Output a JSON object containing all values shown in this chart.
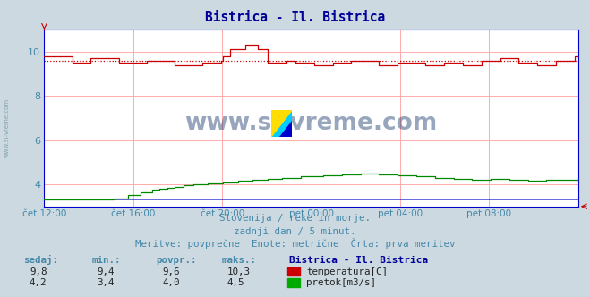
{
  "title": "Bistrica - Il. Bistrica",
  "title_color": "#000099",
  "bg_color": "#ccd9e0",
  "plot_bg_color": "#ffffff",
  "grid_color": "#ffaaaa",
  "axis_color": "#0000cc",
  "text_color": "#4488aa",
  "ylim": [
    3.0,
    11.0
  ],
  "yticks": [
    4,
    6,
    8,
    10
  ],
  "x_labels": [
    "čet 12:00",
    "čet 16:00",
    "čet 20:00",
    "pet 00:00",
    "pet 04:00",
    "pet 08:00"
  ],
  "x_ticks_norm": [
    0.0,
    0.1667,
    0.3333,
    0.5,
    0.6667,
    0.8333
  ],
  "temp_avg": 9.6,
  "subtitle1": "Slovenija / reke in morje.",
  "subtitle2": "zadnji dan / 5 minut.",
  "subtitle3": "Meritve: povprečne  Enote: metrične  Črta: prva meritev",
  "legend_title": "Bistrica - Il. Bistrica",
  "legend_items": [
    {
      "label": "temperatura[C]",
      "color": "#cc0000"
    },
    {
      "label": "pretok[m3/s]",
      "color": "#00aa00"
    }
  ],
  "table_headers": [
    "sedaj:",
    "min.:",
    "povpr.:",
    "maks.:"
  ],
  "table_rows": [
    [
      "9,8",
      "9,4",
      "9,6",
      "10,3"
    ],
    [
      "4,2",
      "3,4",
      "4,0",
      "4,5"
    ]
  ],
  "temp_color": "#cc0000",
  "flow_color": "#008800",
  "watermark_text": "www.si-vreme.com",
  "watermark_color": "#1a3a6e",
  "left_text": "www.si-vreme.com",
  "left_text_color": "#7799aa",
  "bottom_axis_color": "#0000cc",
  "logo_colors": [
    "#ffdd00",
    "#00ccff",
    "#0000cc"
  ]
}
